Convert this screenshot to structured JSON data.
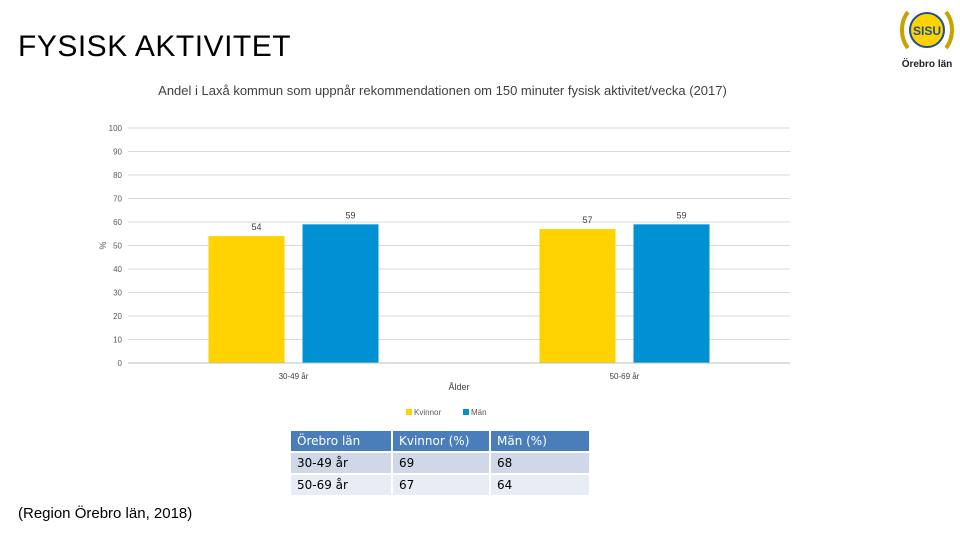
{
  "page": {
    "title": "FYSISK AKTIVITET",
    "source": "(Region Örebro län, 2018)",
    "logo": {
      "badge_text": "SISU",
      "caption": "Örebro län",
      "icon": "sisu-wreath-logo-icon"
    }
  },
  "chart_data": {
    "type": "bar",
    "title": "Andel i Laxå kommun som uppnår rekommendationen om 150 minuter fysisk aktivitet/vecka (2017)",
    "xlabel": "Ålder",
    "ylabel": "%",
    "ylim": [
      0,
      100
    ],
    "yticks": [
      0,
      10,
      20,
      30,
      40,
      50,
      60,
      70,
      80,
      90,
      100
    ],
    "grid": true,
    "legend_position": "bottom",
    "categories": [
      "30-49 år",
      "50-69 år"
    ],
    "series": [
      {
        "name": "Kvinnor",
        "values": [
          54,
          57
        ],
        "color": "#ffd200"
      },
      {
        "name": "Män",
        "values": [
          59,
          59
        ],
        "color": "#0090d4"
      }
    ]
  },
  "table": {
    "headers": [
      "Örebro län",
      "Kvinnor (%)",
      "Män (%)"
    ],
    "rows": [
      [
        "30-49 år",
        "69",
        "68"
      ],
      [
        "50-69 år",
        "67",
        "64"
      ]
    ]
  }
}
